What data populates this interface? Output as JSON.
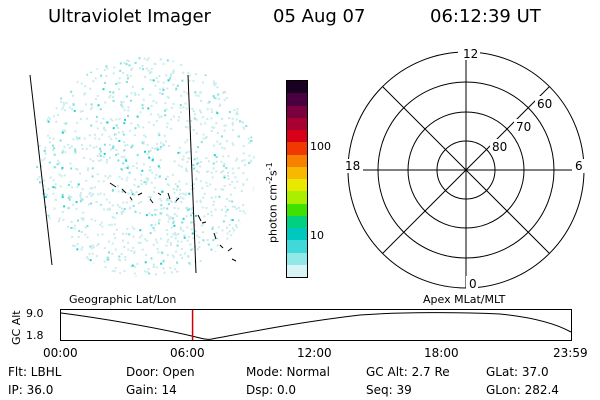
{
  "header": {
    "title": "Ultraviolet Imager",
    "date": "05 Aug 07",
    "time": "06:12:39  UT"
  },
  "colorbar": {
    "unit_label": "photon cm",
    "unit_sup1": "-2",
    "unit_mid": "s",
    "unit_sup2": "-1",
    "tick_labels": [
      "100",
      "10"
    ],
    "colors": [
      "#1a0020",
      "#4a0040",
      "#7a0040",
      "#a80030",
      "#d80018",
      "#f03800",
      "#f88000",
      "#f8b800",
      "#e8e800",
      "#a8f000",
      "#40e000",
      "#00d080",
      "#00c8c0",
      "#40d8d8",
      "#90e8e8",
      "#d8f4f4"
    ]
  },
  "polar_plot": {
    "mlt_labels": {
      "top": "12",
      "left": "18",
      "right": "6",
      "bottom": "0"
    },
    "lat_labels": [
      "60",
      "70",
      "80"
    ]
  },
  "timeline": {
    "axis_label": "GC Alt",
    "y_ticks": [
      "9.0",
      "1.8"
    ],
    "left_header": "Geographic Lat/Lon",
    "right_header": "Apex  MLat/MLT",
    "x_ticks": [
      "00:00",
      "06:00",
      "12:00",
      "18:00",
      "23:59"
    ],
    "current_time_fraction": 0.258
  },
  "status": {
    "flt": "Flt: LBHL",
    "ip": "IP: 36.0",
    "door": "Door: Open",
    "gain": "Gain: 14",
    "mode": "Mode: Normal",
    "dsp": "Dsp:     0.0",
    "gc_alt": "GC Alt: 2.7 Re",
    "seq": "Seq: 39",
    "glat": "GLat:  37.0",
    "glon": "GLon: 282.4"
  }
}
